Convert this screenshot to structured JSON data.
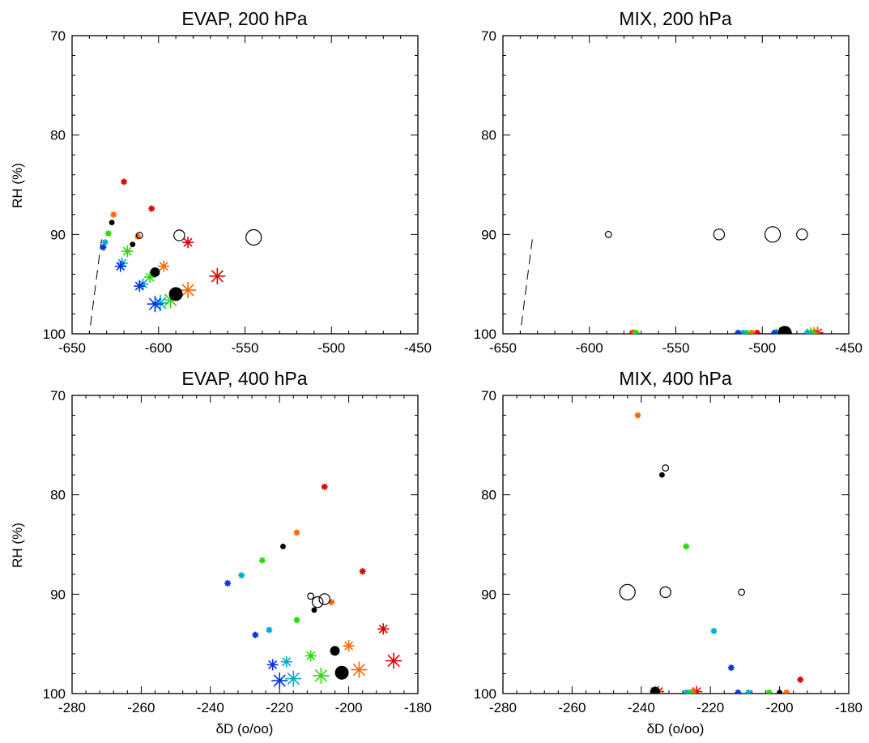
{
  "colors": {
    "red": "#dd0000",
    "orange": "#ff6600",
    "green": "#22dd00",
    "cyan": "#00aacc",
    "blue": "#0033dd",
    "black": "#000000"
  },
  "chart_data": [
    {
      "type": "scatter",
      "title": "EVAP, 200 hPa",
      "xlabel": "",
      "ylabel": "RH (%)",
      "xlim": [
        -650,
        -450
      ],
      "ylim": [
        70,
        100
      ],
      "y_inverted": true,
      "xticks": [
        -650,
        -600,
        -550,
        -500,
        -450
      ],
      "xtick_labels": [
        "-650",
        "-600",
        "-550",
        "-500",
        "-450"
      ],
      "yticks": [
        70,
        80,
        90,
        100
      ],
      "ytick_labels": [
        "70",
        "80",
        "90",
        "100"
      ],
      "reference_line": {
        "style": "dashed",
        "points": [
          [
            -633,
            90.5
          ],
          [
            -640,
            100.0
          ]
        ]
      },
      "series": [
        {
          "marker": "asterisk",
          "color": "red",
          "points": [
            {
              "x": -620,
              "y": 84.7,
              "s": 1
            },
            {
              "x": -604,
              "y": 87.4,
              "s": 1
            },
            {
              "x": -583,
              "y": 90.8,
              "s": 2
            },
            {
              "x": -566,
              "y": 94.2,
              "s": 3
            }
          ]
        },
        {
          "marker": "asterisk",
          "color": "orange",
          "points": [
            {
              "x": -626,
              "y": 88.0,
              "s": 1
            },
            {
              "x": -612,
              "y": 90.2,
              "s": 1
            },
            {
              "x": -597,
              "y": 93.2,
              "s": 2
            },
            {
              "x": -583,
              "y": 95.6,
              "s": 3
            }
          ]
        },
        {
          "marker": "asterisk",
          "color": "green",
          "points": [
            {
              "x": -629,
              "y": 89.9,
              "s": 1
            },
            {
              "x": -618,
              "y": 91.7,
              "s": 2
            },
            {
              "x": -605,
              "y": 94.3,
              "s": 2
            },
            {
              "x": -593,
              "y": 96.6,
              "s": 3
            }
          ]
        },
        {
          "marker": "asterisk",
          "color": "cyan",
          "points": [
            {
              "x": -631,
              "y": 90.8,
              "s": 1
            },
            {
              "x": -621,
              "y": 92.9,
              "s": 2
            },
            {
              "x": -609,
              "y": 95.0,
              "s": 2
            },
            {
              "x": -599,
              "y": 96.9,
              "s": 3
            }
          ]
        },
        {
          "marker": "asterisk",
          "color": "blue",
          "points": [
            {
              "x": -632,
              "y": 91.3,
              "s": 1
            },
            {
              "x": -622,
              "y": 93.2,
              "s": 2
            },
            {
              "x": -611,
              "y": 95.2,
              "s": 2
            },
            {
              "x": -602,
              "y": 97.0,
              "s": 3
            }
          ]
        },
        {
          "marker": "filled-circle",
          "color": "black",
          "points": [
            {
              "x": -627,
              "y": 88.8,
              "s": 1
            },
            {
              "x": -615,
              "y": 91.0,
              "s": 1
            },
            {
              "x": -602,
              "y": 93.8,
              "s": 2
            },
            {
              "x": -590,
              "y": 96.0,
              "s": 3
            }
          ]
        },
        {
          "marker": "open-circle",
          "color": "black",
          "points": [
            {
              "x": -611,
              "y": 90.1,
              "s": 1
            },
            {
              "x": -588,
              "y": 90.1,
              "s": 2
            },
            {
              "x": -545,
              "y": 90.3,
              "s": 3
            }
          ]
        }
      ]
    },
    {
      "type": "scatter",
      "title": "MIX, 200 hPa",
      "xlabel": "",
      "ylabel": "",
      "xlim": [
        -650,
        -450
      ],
      "ylim": [
        70,
        100
      ],
      "y_inverted": true,
      "xticks": [
        -650,
        -600,
        -550,
        -500,
        -450
      ],
      "xtick_labels": [
        "-650",
        "-600",
        "-550",
        "-500",
        "-450"
      ],
      "yticks": [
        70,
        80,
        90,
        100
      ],
      "ytick_labels": [
        "70",
        "80",
        "90",
        "100"
      ],
      "reference_line": {
        "style": "dashed",
        "points": [
          [
            -633,
            90.5
          ],
          [
            -640,
            100.0
          ]
        ]
      },
      "series": [
        {
          "marker": "asterisk",
          "color": "red",
          "points": [
            {
              "x": -575,
              "y": 99.9,
              "s": 1
            },
            {
              "x": -503,
              "y": 99.9,
              "s": 1
            },
            {
              "x": -486,
              "y": 99.9,
              "s": 2
            },
            {
              "x": -468,
              "y": 99.9,
              "s": 2
            }
          ]
        },
        {
          "marker": "asterisk",
          "color": "orange",
          "points": [
            {
              "x": -574,
              "y": 99.9,
              "s": 1
            },
            {
              "x": -506,
              "y": 99.9,
              "s": 1
            },
            {
              "x": -488,
              "y": 99.9,
              "s": 2
            },
            {
              "x": -470,
              "y": 99.9,
              "s": 2
            }
          ]
        },
        {
          "marker": "asterisk",
          "color": "green",
          "points": [
            {
              "x": -573,
              "y": 99.9,
              "s": 1
            },
            {
              "x": -509,
              "y": 99.9,
              "s": 1
            },
            {
              "x": -490,
              "y": 99.9,
              "s": 2
            },
            {
              "x": -472,
              "y": 99.9,
              "s": 2
            }
          ]
        },
        {
          "marker": "asterisk",
          "color": "cyan",
          "points": [
            {
              "x": -511,
              "y": 99.9,
              "s": 1
            },
            {
              "x": -492,
              "y": 99.9,
              "s": 1
            },
            {
              "x": -474,
              "y": 99.9,
              "s": 1
            }
          ]
        },
        {
          "marker": "asterisk",
          "color": "blue",
          "points": [
            {
              "x": -514,
              "y": 99.9,
              "s": 1
            },
            {
              "x": -493,
              "y": 99.9,
              "s": 1
            }
          ]
        },
        {
          "marker": "filled-circle",
          "color": "black",
          "points": [
            {
              "x": -487,
              "y": 99.9,
              "s": 3
            }
          ]
        },
        {
          "marker": "open-circle",
          "color": "black",
          "points": [
            {
              "x": -589,
              "y": 90.0,
              "s": 1
            },
            {
              "x": -525,
              "y": 90.0,
              "s": 2
            },
            {
              "x": -494,
              "y": 90.0,
              "s": 3
            },
            {
              "x": -477,
              "y": 90.0,
              "s": 2
            }
          ]
        }
      ]
    },
    {
      "type": "scatter",
      "title": "EVAP, 400 hPa",
      "xlabel": "δD (o/oo)",
      "ylabel": "RH (%)",
      "xlim": [
        -280,
        -180
      ],
      "ylim": [
        70,
        100
      ],
      "y_inverted": true,
      "xticks": [
        -280,
        -260,
        -240,
        -220,
        -200,
        -180
      ],
      "xtick_labels": [
        "-280",
        "-260",
        "-240",
        "-220",
        "-200",
        "-180"
      ],
      "yticks": [
        70,
        80,
        90,
        100
      ],
      "ytick_labels": [
        "70",
        "80",
        "90",
        "100"
      ],
      "series": [
        {
          "marker": "asterisk",
          "color": "red",
          "points": [
            {
              "x": -207,
              "y": 79.2,
              "s": 1
            },
            {
              "x": -196,
              "y": 87.7,
              "s": 1
            },
            {
              "x": -190,
              "y": 93.5,
              "s": 2
            },
            {
              "x": -187,
              "y": 96.7,
              "s": 3
            }
          ]
        },
        {
          "marker": "asterisk",
          "color": "orange",
          "points": [
            {
              "x": -215,
              "y": 83.8,
              "s": 1
            },
            {
              "x": -205,
              "y": 90.8,
              "s": 1
            },
            {
              "x": -200,
              "y": 95.2,
              "s": 2
            },
            {
              "x": -197,
              "y": 97.6,
              "s": 3
            }
          ]
        },
        {
          "marker": "asterisk",
          "color": "green",
          "points": [
            {
              "x": -225,
              "y": 86.6,
              "s": 1
            },
            {
              "x": -215,
              "y": 92.6,
              "s": 1
            },
            {
              "x": -211,
              "y": 96.2,
              "s": 2
            },
            {
              "x": -208,
              "y": 98.2,
              "s": 3
            }
          ]
        },
        {
          "marker": "asterisk",
          "color": "cyan",
          "points": [
            {
              "x": -231,
              "y": 88.1,
              "s": 1
            },
            {
              "x": -223,
              "y": 93.6,
              "s": 1
            },
            {
              "x": -218,
              "y": 96.8,
              "s": 2
            },
            {
              "x": -216,
              "y": 98.5,
              "s": 3
            }
          ]
        },
        {
          "marker": "asterisk",
          "color": "blue",
          "points": [
            {
              "x": -235,
              "y": 88.9,
              "s": 1
            },
            {
              "x": -227,
              "y": 94.1,
              "s": 1
            },
            {
              "x": -222,
              "y": 97.1,
              "s": 2
            },
            {
              "x": -220,
              "y": 98.7,
              "s": 3
            }
          ]
        },
        {
          "marker": "filled-circle",
          "color": "black",
          "points": [
            {
              "x": -219,
              "y": 85.2,
              "s": 1
            },
            {
              "x": -210,
              "y": 91.6,
              "s": 1
            },
            {
              "x": -204,
              "y": 95.7,
              "s": 2
            },
            {
              "x": -202,
              "y": 97.9,
              "s": 3
            }
          ]
        },
        {
          "marker": "open-circle",
          "color": "black",
          "points": [
            {
              "x": -211,
              "y": 90.2,
              "s": 1
            },
            {
              "x": -209,
              "y": 90.8,
              "s": 2
            },
            {
              "x": -207,
              "y": 90.5,
              "s": 2
            }
          ]
        }
      ]
    },
    {
      "type": "scatter",
      "title": "MIX, 400 hPa",
      "xlabel": "δD (o/oo)",
      "ylabel": "",
      "xlim": [
        -280,
        -180
      ],
      "ylim": [
        70,
        100
      ],
      "y_inverted": true,
      "xticks": [
        -280,
        -260,
        -240,
        -220,
        -200,
        -180
      ],
      "xtick_labels": [
        "-280",
        "-260",
        "-240",
        "-220",
        "-200",
        "-180"
      ],
      "yticks": [
        70,
        80,
        90,
        100
      ],
      "ytick_labels": [
        "70",
        "80",
        "90",
        "100"
      ],
      "series": [
        {
          "marker": "asterisk",
          "color": "red",
          "points": [
            {
              "x": -235,
              "y": 99.8,
              "s": 2
            },
            {
              "x": -224,
              "y": 99.8,
              "s": 2
            },
            {
              "x": -194,
              "y": 98.6,
              "s": 1
            }
          ]
        },
        {
          "marker": "asterisk",
          "color": "orange",
          "points": [
            {
              "x": -241,
              "y": 72.0,
              "s": 1
            },
            {
              "x": -236,
              "y": 99.8,
              "s": 2
            },
            {
              "x": -225,
              "y": 99.8,
              "s": 1
            },
            {
              "x": -198,
              "y": 99.9,
              "s": 1
            }
          ]
        },
        {
          "marker": "asterisk",
          "color": "green",
          "points": [
            {
              "x": -227,
              "y": 85.2,
              "s": 1
            },
            {
              "x": -236,
              "y": 99.8,
              "s": 1
            },
            {
              "x": -226,
              "y": 99.9,
              "s": 1
            },
            {
              "x": -203,
              "y": 99.9,
              "s": 1
            }
          ]
        },
        {
          "marker": "asterisk",
          "color": "cyan",
          "points": [
            {
              "x": -219,
              "y": 93.7,
              "s": 1
            },
            {
              "x": -227,
              "y": 99.9,
              "s": 1
            },
            {
              "x": -209,
              "y": 99.9,
              "s": 1
            }
          ]
        },
        {
          "marker": "asterisk",
          "color": "blue",
          "points": [
            {
              "x": -214,
              "y": 97.4,
              "s": 1
            },
            {
              "x": -212,
              "y": 99.9,
              "s": 1
            }
          ]
        },
        {
          "marker": "filled-circle",
          "color": "black",
          "points": [
            {
              "x": -234,
              "y": 78.0,
              "s": 1
            },
            {
              "x": -236,
              "y": 99.8,
              "s": 2
            },
            {
              "x": -200,
              "y": 99.9,
              "s": 1
            }
          ]
        },
        {
          "marker": "open-circle",
          "color": "black",
          "points": [
            {
              "x": -233,
              "y": 77.3,
              "s": 1
            },
            {
              "x": -244,
              "y": 89.8,
              "s": 3
            },
            {
              "x": -233,
              "y": 89.8,
              "s": 2
            },
            {
              "x": -211,
              "y": 89.8,
              "s": 1
            }
          ]
        }
      ]
    }
  ]
}
